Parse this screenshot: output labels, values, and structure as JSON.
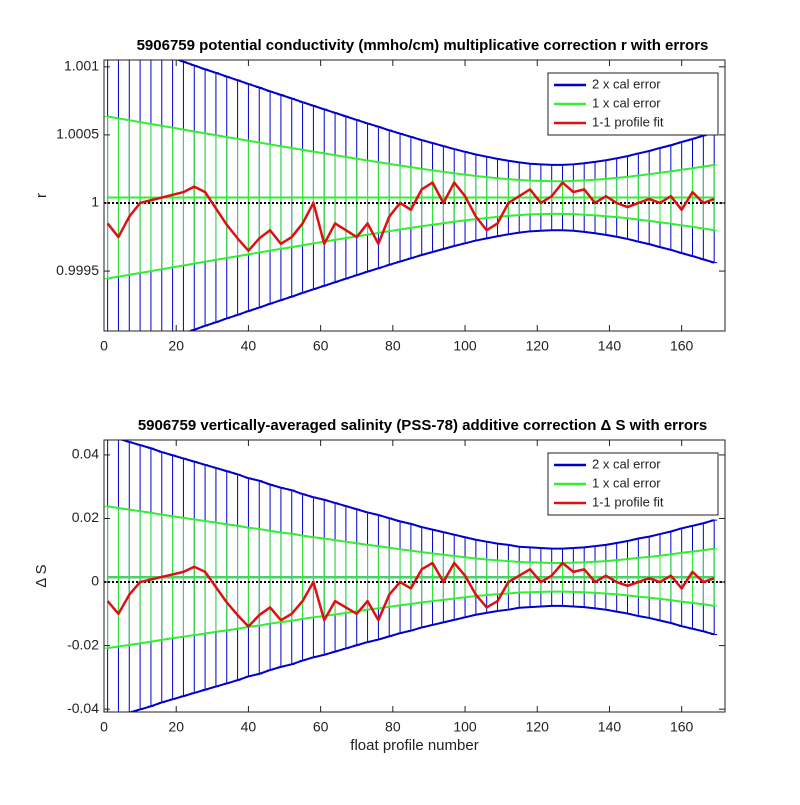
{
  "chart_data": [
    {
      "type": "errorbar",
      "title": "5906759 potential conductivity (mmho/cm) multiplicative correction r with errors",
      "ylabel": "r",
      "x": [
        1,
        4,
        7,
        10,
        13,
        16,
        19,
        22,
        25,
        28,
        31,
        34,
        37,
        40,
        43,
        46,
        49,
        52,
        55,
        58,
        61,
        64,
        67,
        70,
        73,
        76,
        79,
        82,
        85,
        88,
        91,
        94,
        97,
        100,
        103,
        106,
        109,
        112,
        115,
        118,
        121,
        124,
        127,
        130,
        133,
        136,
        139,
        142,
        145,
        148,
        151,
        154,
        157,
        160,
        163,
        166,
        169
      ],
      "series": [
        {
          "name": "2 x cal error",
          "color": "#0000cc",
          "values": [
            1.00004,
            1.00004,
            1.00004,
            1.00004,
            1.00004,
            1.00004,
            1.00004,
            1.00004,
            1.00004,
            1.00004,
            1.00004,
            1.00004,
            1.00004,
            1.00004,
            1.00004,
            1.00004,
            1.00004,
            1.00004,
            1.00004,
            1.00004,
            1.00004,
            1.00004,
            1.00004,
            1.00004,
            1.00004,
            1.00004,
            1.00004,
            1.00004,
            1.00004,
            1.00004,
            1.00004,
            1.00004,
            1.00004,
            1.00004,
            1.00004,
            1.00004,
            1.00004,
            1.00004,
            1.00004,
            1.00004,
            1.00004,
            1.00004,
            1.00004,
            1.00004,
            1.00004,
            1.00004,
            1.00004,
            1.00004,
            1.00004,
            1.00004,
            1.00004,
            1.00004,
            1.00004,
            1.00004,
            1.00004,
            1.00004,
            1.00004
          ],
          "errors": [
            0.00119,
            0.001162,
            0.001136,
            0.001108,
            0.00108,
            0.001052,
            0.001026,
            0.000998,
            0.00097,
            0.000942,
            0.000916,
            0.000888,
            0.000862,
            0.000834,
            0.000808,
            0.00078,
            0.000754,
            0.000728,
            0.0007,
            0.000674,
            0.000648,
            0.000622,
            0.000596,
            0.00057,
            0.000544,
            0.00052,
            0.000494,
            0.00047,
            0.000446,
            0.000422,
            0.0004,
            0.000378,
            0.000356,
            0.000336,
            0.000316,
            0.0003,
            0.000284,
            0.00027,
            0.000258,
            0.000248,
            0.000244,
            0.00024,
            0.00024,
            0.000244,
            0.000252,
            0.000262,
            0.000274,
            0.000288,
            0.000304,
            0.000324,
            0.000342,
            0.000364,
            0.000384,
            0.000408,
            0.00043,
            0.000454,
            0.000478
          ]
        },
        {
          "name": "1 x cal error",
          "color": "#33ee33",
          "values": [
            1.00004,
            1.00004,
            1.00004,
            1.00004,
            1.00004,
            1.00004,
            1.00004,
            1.00004,
            1.00004,
            1.00004,
            1.00004,
            1.00004,
            1.00004,
            1.00004,
            1.00004,
            1.00004,
            1.00004,
            1.00004,
            1.00004,
            1.00004,
            1.00004,
            1.00004,
            1.00004,
            1.00004,
            1.00004,
            1.00004,
            1.00004,
            1.00004,
            1.00004,
            1.00004,
            1.00004,
            1.00004,
            1.00004,
            1.00004,
            1.00004,
            1.00004,
            1.00004,
            1.00004,
            1.00004,
            1.00004,
            1.00004,
            1.00004,
            1.00004,
            1.00004,
            1.00004,
            1.00004,
            1.00004,
            1.00004,
            1.00004,
            1.00004,
            1.00004,
            1.00004,
            1.00004,
            1.00004,
            1.00004,
            1.00004,
            1.00004
          ],
          "errors": [
            0.000595,
            0.000581,
            0.000568,
            0.000554,
            0.00054,
            0.000526,
            0.000513,
            0.000499,
            0.000485,
            0.000471,
            0.000458,
            0.000444,
            0.000431,
            0.000417,
            0.000404,
            0.00039,
            0.000377,
            0.000364,
            0.00035,
            0.000337,
            0.000324,
            0.000311,
            0.000298,
            0.000285,
            0.000272,
            0.00026,
            0.000247,
            0.000235,
            0.000223,
            0.000211,
            0.0002,
            0.000189,
            0.000178,
            0.000168,
            0.000158,
            0.00015,
            0.000142,
            0.000135,
            0.000129,
            0.000124,
            0.000122,
            0.00012,
            0.00012,
            0.000122,
            0.000126,
            0.000131,
            0.000137,
            0.000144,
            0.000152,
            0.000162,
            0.000171,
            0.000182,
            0.000192,
            0.000204,
            0.000215,
            0.000227,
            0.000239
          ]
        },
        {
          "name": "1-1 profile fit",
          "color": "#dd1111",
          "values": [
            0.99985,
            0.99975,
            0.9999,
            1.0,
            1.00002,
            1.00004,
            1.00006,
            1.00008,
            1.00012,
            1.00008,
            0.99996,
            0.99984,
            0.99974,
            0.99965,
            0.99974,
            0.9998,
            0.9997,
            0.99975,
            0.99985,
            1.0,
            0.9997,
            0.99985,
            0.9998,
            0.99975,
            0.99985,
            0.9997,
            0.9999,
            1.0,
            0.99995,
            1.0001,
            1.00015,
            1.0,
            1.00015,
            1.00005,
            0.9999,
            0.9998,
            0.99985,
            1.0,
            1.00005,
            1.0001,
            1.0,
            1.00005,
            1.00015,
            1.00008,
            1.0001,
            1.0,
            1.00005,
            1.0,
            0.99997,
            1.0,
            1.00003,
            1.0,
            1.00005,
            0.99995,
            1.00008,
            1.0,
            1.00003
          ]
        }
      ],
      "reference_line": 1,
      "xlim": [
        0,
        172
      ],
      "xticks": [
        0,
        20,
        40,
        60,
        80,
        100,
        120,
        140,
        160
      ],
      "ylim": [
        0.99906,
        1.00105
      ],
      "yticks": [
        0.9995,
        1,
        1.0005,
        1.001
      ],
      "grid": false,
      "legend": "upper right"
    },
    {
      "type": "errorbar",
      "title": "5906759 vertically-averaged salinity (PSS-78) additive correction Δ S with errors",
      "ylabel": "Δ S",
      "xlabel": "float profile number",
      "x": [
        1,
        4,
        7,
        10,
        13,
        16,
        19,
        22,
        25,
        28,
        31,
        34,
        37,
        40,
        43,
        46,
        49,
        52,
        55,
        58,
        61,
        64,
        67,
        70,
        73,
        76,
        79,
        82,
        85,
        88,
        91,
        94,
        97,
        100,
        103,
        106,
        109,
        112,
        115,
        118,
        121,
        124,
        127,
        130,
        133,
        136,
        139,
        142,
        145,
        148,
        151,
        154,
        157,
        160,
        163,
        166,
        169
      ],
      "series": [
        {
          "name": "2 x cal error",
          "color": "#0000cc",
          "values": [
            0.0015,
            0.0015,
            0.0015,
            0.0015,
            0.0015,
            0.0015,
            0.0015,
            0.0015,
            0.0015,
            0.0015,
            0.0015,
            0.0015,
            0.0015,
            0.0015,
            0.0015,
            0.0015,
            0.0015,
            0.0015,
            0.0015,
            0.0015,
            0.0015,
            0.0015,
            0.0015,
            0.0015,
            0.0015,
            0.0015,
            0.0015,
            0.0015,
            0.0015,
            0.0015,
            0.0015,
            0.0015,
            0.0015,
            0.0015,
            0.0015,
            0.0015,
            0.0015,
            0.0015,
            0.0015,
            0.0015,
            0.0015,
            0.0015,
            0.0015,
            0.0015,
            0.0015,
            0.0015,
            0.0015,
            0.0015,
            0.0015,
            0.0015,
            0.0015,
            0.0015,
            0.0015,
            0.0015,
            0.0015,
            0.0015,
            0.0015
          ],
          "errors": [
            0.0446,
            0.0436,
            0.0426,
            0.0416,
            0.0406,
            0.0394,
            0.0384,
            0.0374,
            0.0364,
            0.0354,
            0.0344,
            0.0334,
            0.0324,
            0.0312,
            0.0304,
            0.0292,
            0.0282,
            0.0274,
            0.0262,
            0.0252,
            0.0244,
            0.0234,
            0.0224,
            0.0214,
            0.0204,
            0.0196,
            0.0186,
            0.0176,
            0.0168,
            0.0158,
            0.015,
            0.0142,
            0.0134,
            0.0126,
            0.0118,
            0.0112,
            0.0106,
            0.0102,
            0.0096,
            0.0094,
            0.0092,
            0.009,
            0.009,
            0.0092,
            0.0094,
            0.0098,
            0.0102,
            0.0108,
            0.0114,
            0.0122,
            0.0128,
            0.0136,
            0.0144,
            0.0154,
            0.0162,
            0.017,
            0.018
          ]
        },
        {
          "name": "1 x cal error",
          "color": "#33ee33",
          "values": [
            0.0015,
            0.0015,
            0.0015,
            0.0015,
            0.0015,
            0.0015,
            0.0015,
            0.0015,
            0.0015,
            0.0015,
            0.0015,
            0.0015,
            0.0015,
            0.0015,
            0.0015,
            0.0015,
            0.0015,
            0.0015,
            0.0015,
            0.0015,
            0.0015,
            0.0015,
            0.0015,
            0.0015,
            0.0015,
            0.0015,
            0.0015,
            0.0015,
            0.0015,
            0.0015,
            0.0015,
            0.0015,
            0.0015,
            0.0015,
            0.0015,
            0.0015,
            0.0015,
            0.0015,
            0.0015,
            0.0015,
            0.0015,
            0.0015,
            0.0015,
            0.0015,
            0.0015,
            0.0015,
            0.0015,
            0.0015,
            0.0015,
            0.0015,
            0.0015,
            0.0015,
            0.0015,
            0.0015,
            0.0015,
            0.0015,
            0.0015
          ],
          "errors": [
            0.0223,
            0.0218,
            0.0213,
            0.0208,
            0.0203,
            0.0197,
            0.0192,
            0.0187,
            0.0182,
            0.0177,
            0.0172,
            0.0167,
            0.0162,
            0.0156,
            0.0152,
            0.0146,
            0.0141,
            0.0137,
            0.0131,
            0.0126,
            0.0122,
            0.0117,
            0.0112,
            0.0107,
            0.0102,
            0.0098,
            0.0093,
            0.0088,
            0.0084,
            0.0079,
            0.0075,
            0.0071,
            0.0067,
            0.0063,
            0.0059,
            0.0056,
            0.0053,
            0.0051,
            0.0048,
            0.0047,
            0.0046,
            0.0045,
            0.0045,
            0.0046,
            0.0047,
            0.0049,
            0.0051,
            0.0054,
            0.0057,
            0.0061,
            0.0064,
            0.0068,
            0.0072,
            0.0077,
            0.0081,
            0.0085,
            0.009
          ]
        },
        {
          "name": "1-1 profile fit",
          "color": "#dd1111",
          "values": [
            -0.006,
            -0.01,
            -0.004,
            0,
            0.0008,
            0.0016,
            0.0024,
            0.0032,
            0.0048,
            0.0032,
            -0.0016,
            -0.0064,
            -0.0104,
            -0.014,
            -0.0104,
            -0.008,
            -0.012,
            -0.01,
            -0.006,
            0,
            -0.012,
            -0.006,
            -0.008,
            -0.01,
            -0.006,
            -0.012,
            -0.004,
            0,
            -0.002,
            0.004,
            0.006,
            0,
            0.006,
            0.002,
            -0.004,
            -0.008,
            -0.006,
            0,
            0.002,
            0.004,
            0,
            0.002,
            0.006,
            0.0032,
            0.004,
            0,
            0.002,
            0,
            -0.0012,
            0,
            0.0012,
            0,
            0.002,
            -0.002,
            0.0032,
            0,
            0.0012
          ]
        }
      ],
      "reference_line": 0,
      "xlim": [
        0,
        172
      ],
      "xticks": [
        0,
        20,
        40,
        60,
        80,
        100,
        120,
        140,
        160
      ],
      "ylim": [
        -0.0409,
        0.0447
      ],
      "yticks": [
        -0.04,
        -0.02,
        0,
        0.02,
        0.04
      ],
      "grid": false,
      "legend": "upper right"
    }
  ]
}
